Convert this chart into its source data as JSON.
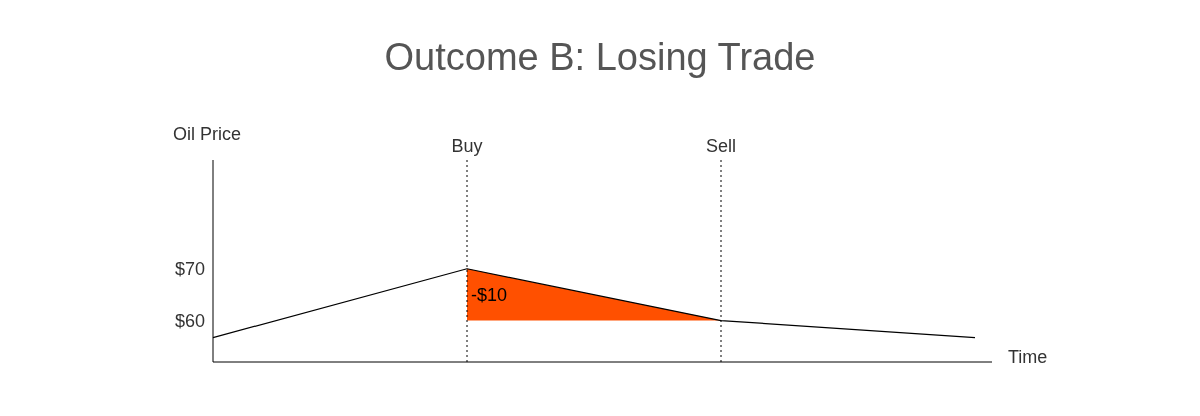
{
  "chart_data": {
    "type": "line",
    "title": "Outcome B: Losing Trade",
    "xlabel": "Time",
    "ylabel": "Oil Price",
    "categories": [
      null,
      "Buy",
      "Sell",
      null
    ],
    "series": [
      {
        "type": "area",
        "color": "#ff5000",
        "values": [
          null,
          70,
          60,
          null
        ]
      },
      {
        "color": "#000000",
        "values": [
          56.7,
          70,
          60,
          56.7
        ]
      }
    ],
    "ylim": [
      52,
      91
    ],
    "yticks": [
      {
        "value": 60,
        "label": "$60"
      },
      {
        "value": 70,
        "label": "$70"
      }
    ],
    "marker": "none",
    "line_style": "solid",
    "ref_lines": [
      {
        "axis": "x",
        "value": "Buy",
        "line_style": "dotted",
        "color": "#000000"
      },
      {
        "axis": "x",
        "value": "Sell",
        "line_style": "dotted",
        "color": "#000000"
      }
    ],
    "annotations": [
      {
        "text": "-$10",
        "x": "Buy",
        "y": 65
      }
    ]
  }
}
